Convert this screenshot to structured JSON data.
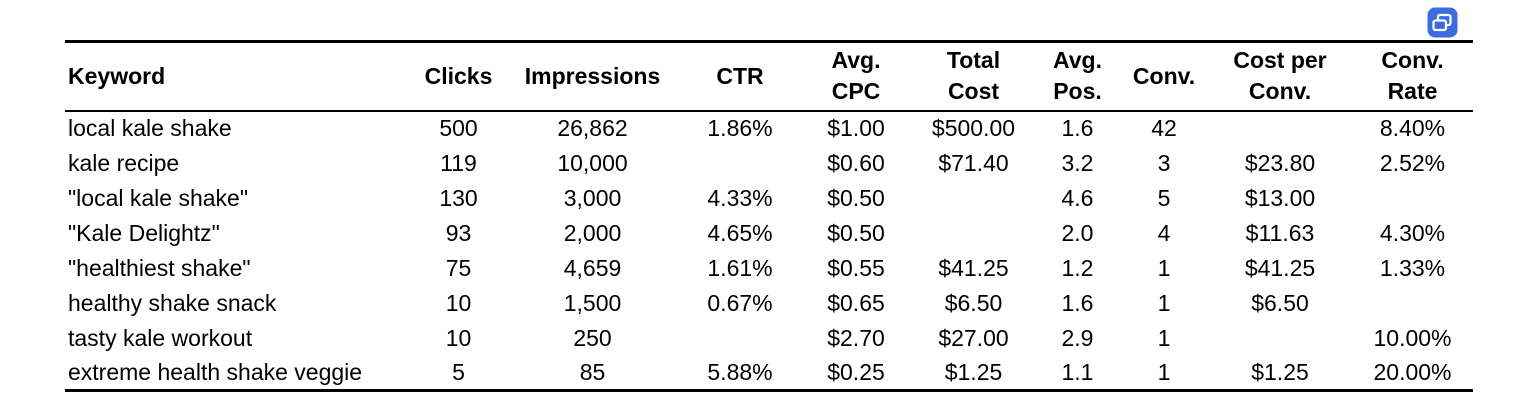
{
  "linked_table_button": {
    "icon": "linked-table-icon",
    "color": "#3d6ce0"
  },
  "table": {
    "columns": [
      {
        "label": "Keyword"
      },
      {
        "label": "Clicks"
      },
      {
        "label": "Impressions"
      },
      {
        "label": "CTR"
      },
      {
        "label": "Avg.\nCPC"
      },
      {
        "label": "Total\nCost"
      },
      {
        "label": "Avg.\nPos."
      },
      {
        "label": "Conv."
      },
      {
        "label": "Cost per\nConv."
      },
      {
        "label": "Conv.\nRate"
      }
    ],
    "rows": [
      [
        "local kale shake",
        "500",
        "26,862",
        "1.86%",
        "$1.00",
        "$500.00",
        "1.6",
        "42",
        "",
        "8.40%"
      ],
      [
        "kale recipe",
        "119",
        "10,000",
        "",
        "$0.60",
        "$71.40",
        "3.2",
        "3",
        "$23.80",
        "2.52%"
      ],
      [
        "\"local kale shake\"",
        "130",
        "3,000",
        "4.33%",
        "$0.50",
        "",
        "4.6",
        "5",
        "$13.00",
        ""
      ],
      [
        "\"Kale Delightz\"",
        "93",
        "2,000",
        "4.65%",
        "$0.50",
        "",
        "2.0",
        "4",
        "$11.63",
        "4.30%"
      ],
      [
        "\"healthiest shake\"",
        "75",
        "4,659",
        "1.61%",
        "$0.55",
        "$41.25",
        "1.2",
        "1",
        "$41.25",
        "1.33%"
      ],
      [
        "healthy shake snack",
        "10",
        "1,500",
        "0.67%",
        "$0.65",
        "$6.50",
        "1.6",
        "1",
        "$6.50",
        ""
      ],
      [
        "tasty kale workout",
        "10",
        "250",
        "",
        "$2.70",
        "$27.00",
        "2.9",
        "1",
        "",
        "10.00%"
      ],
      [
        "extreme health shake veggie",
        "5",
        "85",
        "5.88%",
        "$0.25",
        "$1.25",
        "1.1",
        "1",
        "$1.25",
        "20.00%"
      ]
    ]
  }
}
